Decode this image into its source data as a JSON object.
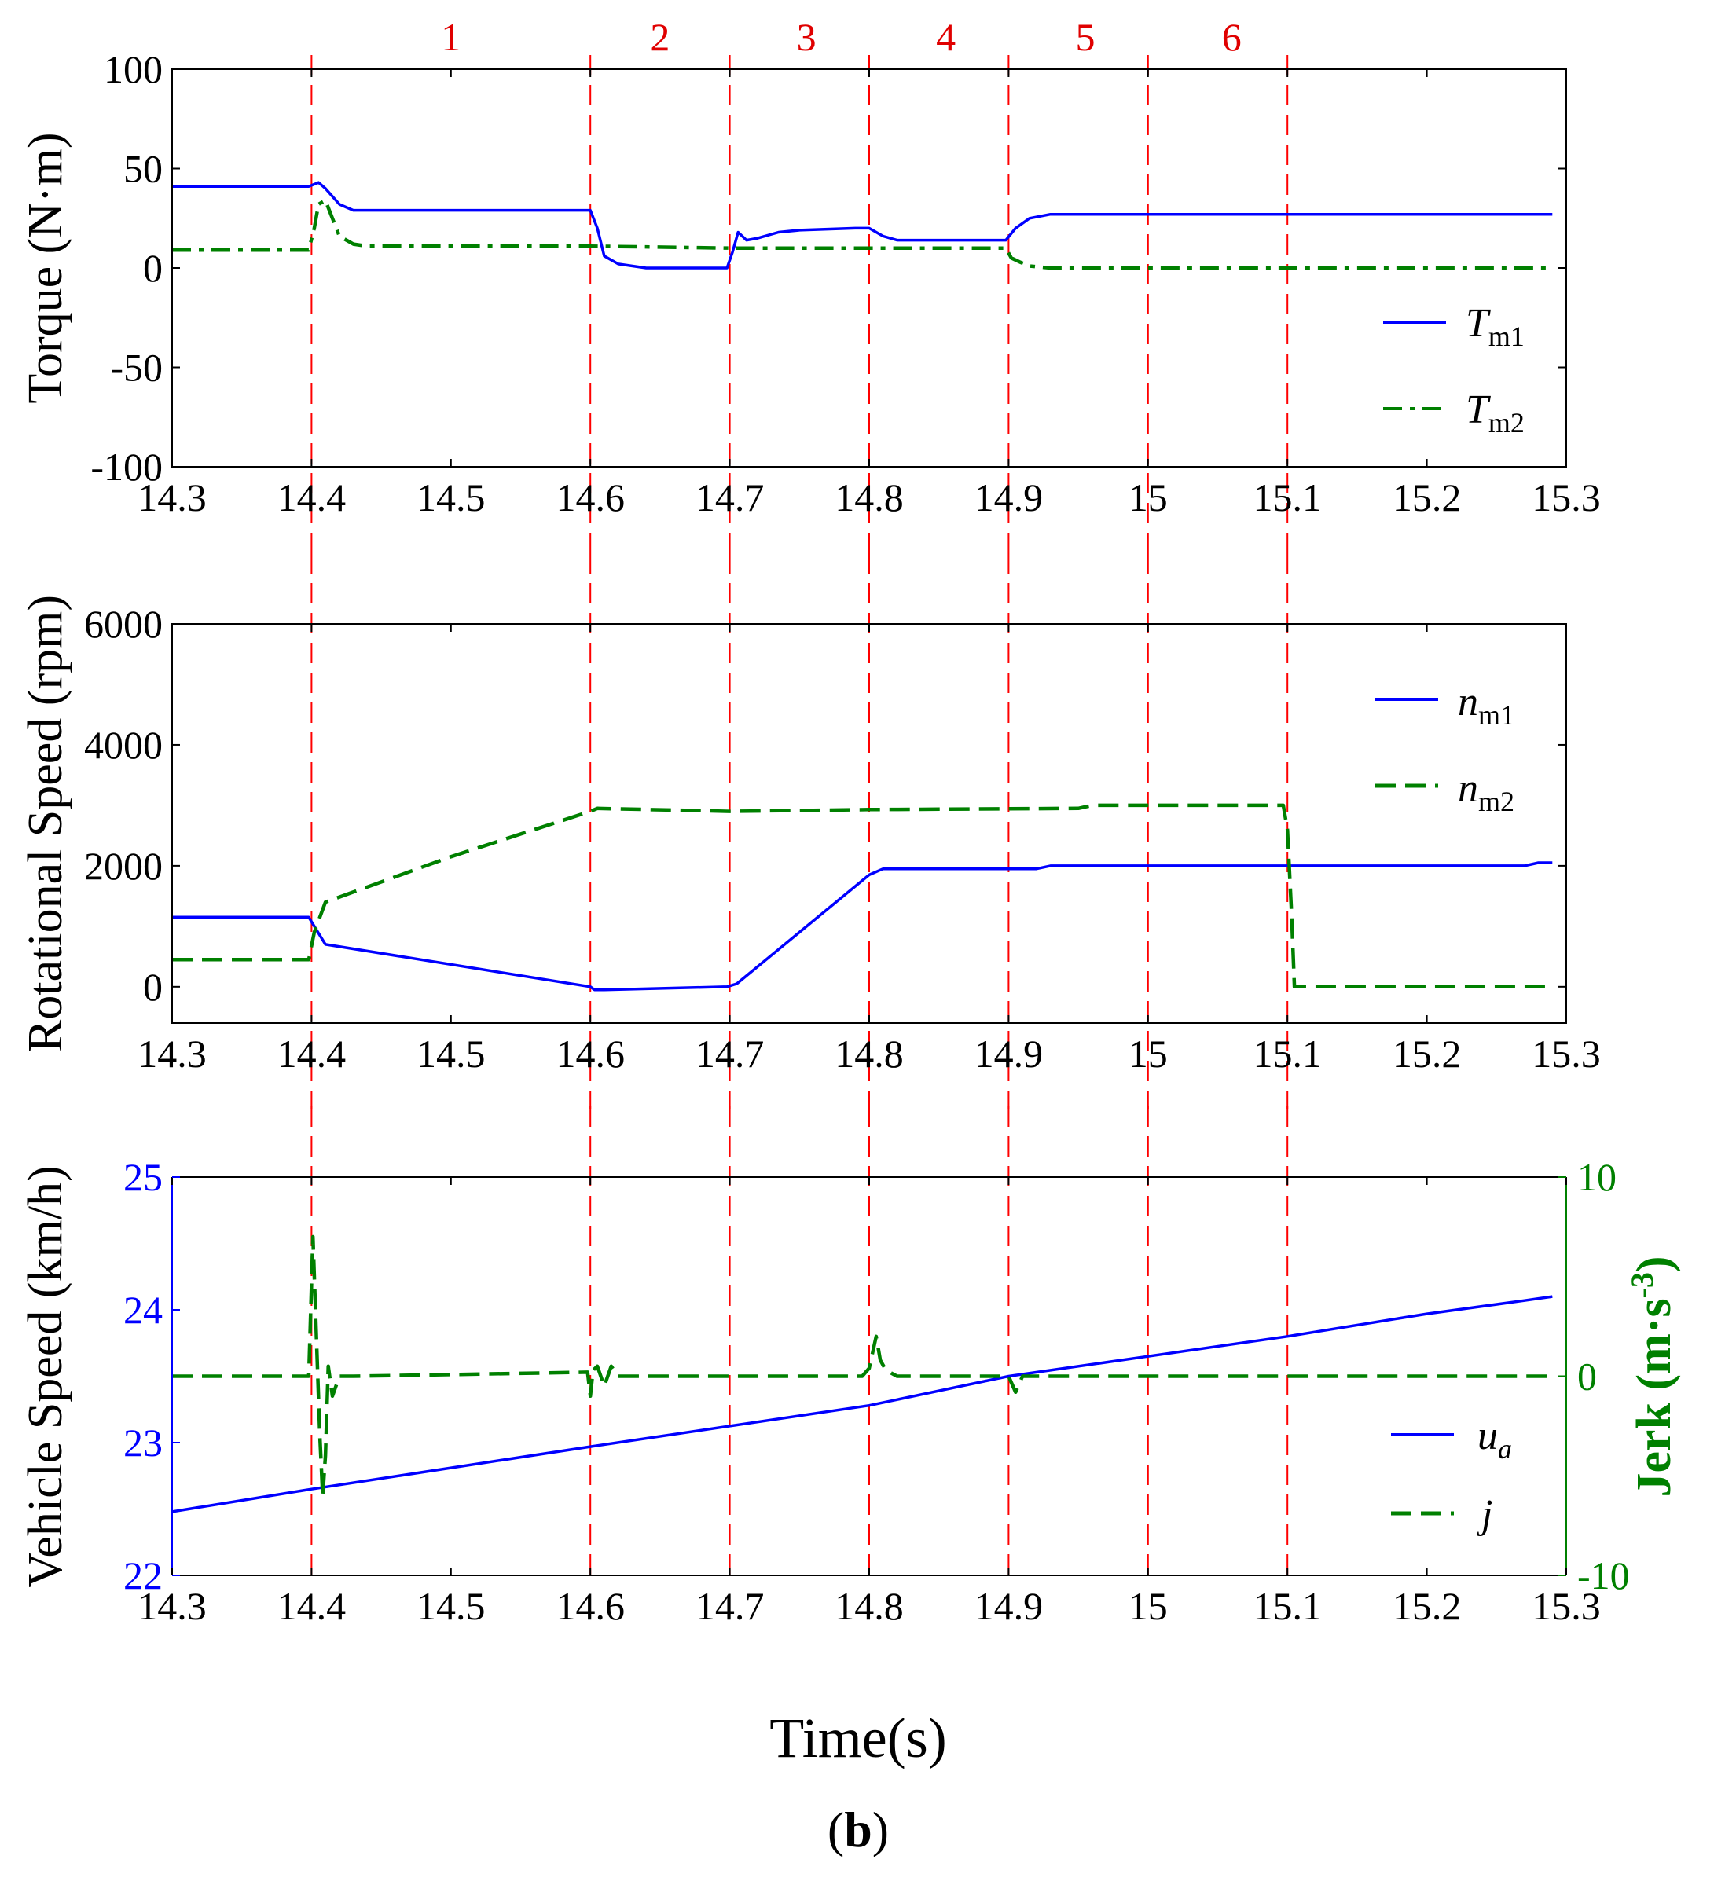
{
  "colors": {
    "blue": "#0000ff",
    "green": "#008000",
    "red": "#ff0000",
    "axis": "#000000"
  },
  "xlabel": "Time(s)",
  "panel_label": "(b)",
  "panel_label_parts": {
    "open": "(",
    "letter": "b",
    "close": ")"
  },
  "chart_data": [
    {
      "type": "line",
      "id": "torque",
      "ylabel": "Torque (N·m)",
      "xlim": [
        14.3,
        15.3
      ],
      "ylim": [
        -100,
        100
      ],
      "xticks": [
        14.3,
        14.4,
        14.5,
        14.6,
        14.7,
        14.8,
        14.9,
        15,
        15.1,
        15.2,
        15.3
      ],
      "xtick_labels": [
        "14.3",
        "14.4",
        "14.5",
        "14.6",
        "14.7",
        "14.8",
        "14.9",
        "15",
        "15.1",
        "15.2",
        "15.3"
      ],
      "yticks": [
        100,
        50,
        0,
        -50,
        -100
      ],
      "ytick_labels": [
        "100",
        "50",
        "0",
        "-50",
        "-100"
      ],
      "phase_lines": [
        14.4,
        14.6,
        14.7,
        14.8,
        14.9,
        15.0,
        15.1
      ],
      "phase_labels": [
        {
          "label": "1",
          "x": 14.5
        },
        {
          "label": "2",
          "x": 14.65
        },
        {
          "label": "3",
          "x": 14.755
        },
        {
          "label": "4",
          "x": 14.855
        },
        {
          "label": "5",
          "x": 14.955
        },
        {
          "label": "6",
          "x": 15.06
        }
      ],
      "series": [
        {
          "name": "Tm1",
          "legend_main": "T",
          "legend_sub": "m1",
          "color": "#0000ff",
          "dash": "solid",
          "x": [
            14.3,
            14.398,
            14.405,
            14.41,
            14.42,
            14.43,
            14.6,
            14.605,
            14.61,
            14.62,
            14.64,
            14.698,
            14.702,
            14.706,
            14.712,
            14.72,
            14.735,
            14.75,
            14.79,
            14.8,
            14.81,
            14.82,
            14.898,
            14.905,
            14.915,
            14.93,
            15.29
          ],
          "y": [
            41,
            41,
            43,
            40,
            32,
            29,
            29,
            20,
            6,
            2,
            0,
            0,
            8,
            18,
            14,
            15,
            18,
            19,
            20,
            20,
            16,
            14,
            14,
            20,
            25,
            27,
            27
          ]
        },
        {
          "name": "Tm2",
          "legend_main": "T",
          "legend_sub": "m2",
          "color": "#008000",
          "dash": "dashdot",
          "x": [
            14.3,
            14.398,
            14.402,
            14.405,
            14.41,
            14.415,
            14.42,
            14.43,
            14.44,
            14.6,
            14.7,
            14.8,
            14.898,
            14.902,
            14.908,
            14.915,
            14.93,
            15.29
          ],
          "y": [
            9,
            9,
            20,
            32,
            34,
            25,
            16,
            12,
            11,
            11,
            10,
            10,
            10,
            5,
            3,
            1,
            0,
            0
          ]
        }
      ]
    },
    {
      "type": "line",
      "id": "speed",
      "ylabel": "Rotational Speed (rpm)",
      "xlim": [
        14.3,
        15.3
      ],
      "ylim": [
        -600,
        6000
      ],
      "xticks": [
        14.3,
        14.4,
        14.5,
        14.6,
        14.7,
        14.8,
        14.9,
        15,
        15.1,
        15.2,
        15.3
      ],
      "xtick_labels": [
        "14.3",
        "14.4",
        "14.5",
        "14.6",
        "14.7",
        "14.8",
        "14.9",
        "15",
        "15.1",
        "15.2",
        "15.3"
      ],
      "yticks": [
        6000,
        4000,
        2000,
        0
      ],
      "ytick_labels": [
        "6000",
        "4000",
        "2000",
        "0"
      ],
      "phase_lines": [
        14.4,
        14.6,
        14.7,
        14.8,
        14.9,
        15.0,
        15.1
      ],
      "series": [
        {
          "name": "nm1",
          "legend_main": "n",
          "legend_sub": "m1",
          "color": "#0000ff",
          "dash": "solid",
          "x": [
            14.3,
            14.398,
            14.402,
            14.41,
            14.6,
            14.603,
            14.61,
            14.698,
            14.705,
            14.8,
            14.81,
            14.92,
            14.93,
            15.27,
            15.28,
            15.29
          ],
          "y": [
            1150,
            1150,
            1000,
            700,
            0,
            -50,
            -50,
            0,
            50,
            1850,
            1950,
            1950,
            2000,
            2000,
            2050,
            2050
          ]
        },
        {
          "name": "nm2",
          "legend_main": "n",
          "legend_sub": "m2",
          "color": "#008000",
          "dash": "dashed",
          "x": [
            14.3,
            14.398,
            14.402,
            14.41,
            14.5,
            14.6,
            14.605,
            14.7,
            14.8,
            14.95,
            14.96,
            15.097,
            15.1,
            15.103,
            15.105,
            15.29
          ],
          "y": [
            450,
            450,
            900,
            1400,
            2150,
            2900,
            2950,
            2900,
            2930,
            2950,
            3000,
            3000,
            2600,
            1200,
            0,
            0
          ]
        }
      ]
    },
    {
      "type": "line",
      "id": "vehicle",
      "ylabel": "Vehicle Speed (km/h)",
      "y2label": "Jerk (m·s⁻³)",
      "y2label_parts": {
        "main": "Jerk (m·s",
        "sup": "-3",
        "close": ")"
      },
      "xlim": [
        14.3,
        15.3
      ],
      "ylim": [
        22,
        25
      ],
      "y2lim": [
        -10,
        10
      ],
      "xticks": [
        14.3,
        14.4,
        14.5,
        14.6,
        14.7,
        14.8,
        14.9,
        15,
        15.1,
        15.2,
        15.3
      ],
      "xtick_labels": [
        "14.3",
        "14.4",
        "14.5",
        "14.6",
        "14.7",
        "14.8",
        "14.9",
        "15",
        "15.1",
        "15.2",
        "15.3"
      ],
      "yticks": [
        25,
        24,
        23,
        22
      ],
      "ytick_labels": [
        "25",
        "24",
        "23",
        "22"
      ],
      "y2ticks": [
        10,
        0,
        -10
      ],
      "y2tick_labels": [
        "10",
        "0",
        "-10"
      ],
      "phase_lines": [
        14.4,
        14.6,
        14.7,
        14.8,
        14.9,
        15.0,
        15.1
      ],
      "series": [
        {
          "name": "ua",
          "legend_main": "u",
          "legend_sub": "a",
          "axis": "left",
          "color": "#0000ff",
          "dash": "solid",
          "x": [
            14.3,
            14.4,
            14.6,
            14.8,
            14.9,
            15.0,
            15.1,
            15.2,
            15.27,
            15.29
          ],
          "y": [
            22.48,
            22.65,
            22.97,
            23.28,
            23.5,
            23.65,
            23.8,
            23.97,
            24.07,
            24.1
          ]
        },
        {
          "name": "j",
          "legend_main": "j",
          "legend_sub": "",
          "axis": "right",
          "color": "#008000",
          "dash": "dashed",
          "x": [
            14.3,
            14.398,
            14.401,
            14.403,
            14.406,
            14.408,
            14.41,
            14.412,
            14.415,
            14.42,
            14.43,
            14.598,
            14.6,
            14.602,
            14.605,
            14.61,
            14.615,
            14.62,
            14.795,
            14.8,
            14.805,
            14.808,
            14.812,
            14.82,
            14.9,
            14.905,
            14.91,
            15.0,
            15.1,
            15.29
          ],
          "y": [
            0,
            0,
            7,
            3,
            -3,
            -6,
            -4,
            0.5,
            -1,
            0,
            0,
            0.2,
            -1,
            0.3,
            0.5,
            -0.5,
            0.5,
            0,
            0,
            0.4,
            2,
            0.8,
            0.3,
            0,
            0,
            -0.8,
            0,
            0,
            0,
            0
          ]
        }
      ]
    }
  ]
}
